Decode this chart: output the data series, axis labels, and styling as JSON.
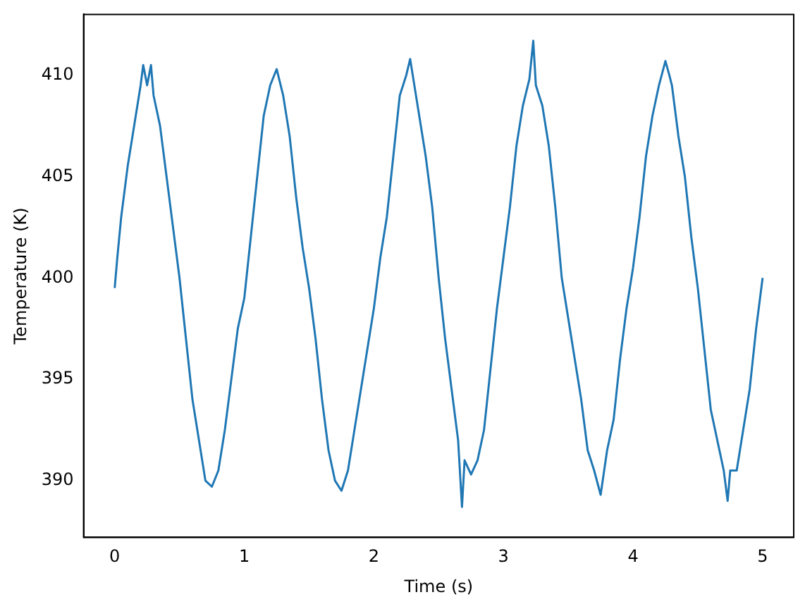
{
  "chart_data": {
    "type": "line",
    "xlabel": "Time (s)",
    "ylabel": "Temperature (K)",
    "xlim": [
      -0.24,
      5.24
    ],
    "ylim": [
      387.2,
      413
    ],
    "xticks": [
      0,
      1,
      2,
      3,
      4,
      5
    ],
    "yticks": [
      390,
      395,
      400,
      405,
      410
    ],
    "grid": false,
    "legend": false,
    "marker": "none",
    "line_style": "solid",
    "x": [
      0,
      0.02,
      0.05,
      0.1,
      0.15,
      0.2,
      0.22,
      0.25,
      0.28,
      0.3,
      0.35,
      0.4,
      0.45,
      0.5,
      0.55,
      0.6,
      0.65,
      0.7,
      0.75,
      0.8,
      0.85,
      0.9,
      0.95,
      1.0,
      1.05,
      1.1,
      1.15,
      1.2,
      1.25,
      1.3,
      1.35,
      1.4,
      1.45,
      1.5,
      1.55,
      1.6,
      1.65,
      1.7,
      1.75,
      1.8,
      1.85,
      1.9,
      1.95,
      2.0,
      2.05,
      2.1,
      2.15,
      2.2,
      2.25,
      2.28,
      2.3,
      2.35,
      2.4,
      2.45,
      2.5,
      2.55,
      2.6,
      2.65,
      2.68,
      2.7,
      2.75,
      2.8,
      2.85,
      2.9,
      2.95,
      3.0,
      3.05,
      3.1,
      3.15,
      3.2,
      3.23,
      3.25,
      3.3,
      3.35,
      3.4,
      3.45,
      3.5,
      3.55,
      3.6,
      3.65,
      3.7,
      3.75,
      3.8,
      3.85,
      3.9,
      3.95,
      4.0,
      4.05,
      4.1,
      4.15,
      4.2,
      4.25,
      4.28,
      4.3,
      4.35,
      4.4,
      4.45,
      4.5,
      4.55,
      4.6,
      4.65,
      4.7,
      4.73,
      4.75,
      4.8,
      4.85,
      4.9,
      4.95,
      5.0
    ],
    "series": [
      {
        "color": "#1f77b4",
        "values": [
          399.5,
          401,
          403,
          405.5,
          407.5,
          409.5,
          410.5,
          409.5,
          410.5,
          409,
          407.5,
          405,
          402.5,
          400,
          397,
          394,
          392,
          390,
          389.7,
          390.5,
          392.5,
          395,
          397.5,
          399,
          402,
          405,
          408,
          409.5,
          410.3,
          409,
          407,
          404,
          401.5,
          399.5,
          397,
          394,
          391.5,
          390,
          389.5,
          390.5,
          392.5,
          394.5,
          396.5,
          398.5,
          401,
          403,
          406,
          409,
          410,
          410.8,
          410,
          408,
          406,
          403.5,
          400,
          397,
          394.5,
          392,
          388.7,
          391,
          390.3,
          391,
          392.5,
          395.5,
          398.5,
          401,
          403.5,
          406.5,
          408.5,
          409.8,
          411.7,
          409.5,
          408.5,
          406.5,
          403.5,
          400,
          398,
          396,
          394,
          391.5,
          390.5,
          389.3,
          391.5,
          393,
          396,
          398.5,
          400.5,
          403,
          406,
          408,
          409.5,
          410.7,
          410,
          409.5,
          407,
          405,
          402,
          399.5,
          396.5,
          393.5,
          392,
          390.5,
          389,
          390.5,
          390.5,
          392.5,
          394.5,
          397.5,
          400
        ]
      }
    ]
  }
}
